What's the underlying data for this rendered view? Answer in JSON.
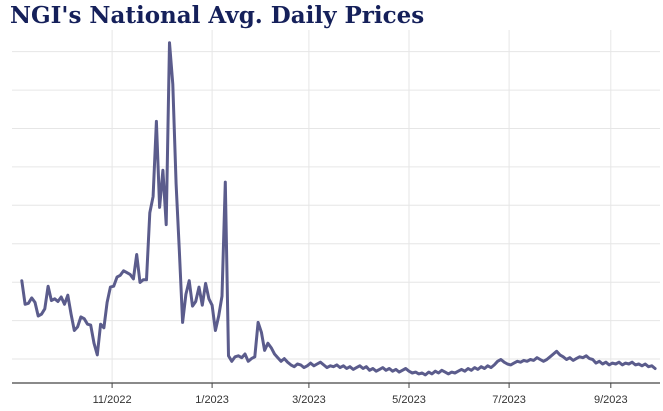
{
  "chart_data": {
    "type": "line",
    "title": "NGI's National Avg. Daily Prices",
    "xlabel": "",
    "ylabel": "",
    "x_tick_labels": [
      "11/2022",
      "1/2023",
      "3/2023",
      "5/2023",
      "7/2023",
      "9/2023"
    ],
    "x_tick_dates": [
      "2022-11-01",
      "2023-01-01",
      "2023-03-01",
      "2023-05-01",
      "2023-07-01",
      "2023-09-01"
    ],
    "xlim": [
      "2022-09-01",
      "2023-10-01"
    ],
    "ylim": [
      0,
      39
    ],
    "y_ticks_labeled": false,
    "grid": true,
    "line_color": "#5b5c8c",
    "series": [
      {
        "name": "",
        "points": [
          [
            "2022-09-07",
            11.3
          ],
          [
            "2022-09-09",
            8.7
          ],
          [
            "2022-09-11",
            8.8
          ],
          [
            "2022-09-13",
            9.4
          ],
          [
            "2022-09-15",
            8.9
          ],
          [
            "2022-09-17",
            7.4
          ],
          [
            "2022-09-19",
            7.6
          ],
          [
            "2022-09-21",
            8.2
          ],
          [
            "2022-09-23",
            10.7
          ],
          [
            "2022-09-25",
            9.1
          ],
          [
            "2022-09-27",
            9.3
          ],
          [
            "2022-09-29",
            9.0
          ],
          [
            "2022-10-01",
            9.5
          ],
          [
            "2022-10-03",
            8.7
          ],
          [
            "2022-10-05",
            9.7
          ],
          [
            "2022-10-07",
            7.6
          ],
          [
            "2022-10-09",
            5.8
          ],
          [
            "2022-10-11",
            6.2
          ],
          [
            "2022-10-13",
            7.3
          ],
          [
            "2022-10-15",
            7.1
          ],
          [
            "2022-10-17",
            6.5
          ],
          [
            "2022-10-19",
            6.4
          ],
          [
            "2022-10-21",
            4.4
          ],
          [
            "2022-10-23",
            3.1
          ],
          [
            "2022-10-25",
            6.5
          ],
          [
            "2022-10-27",
            6.1
          ],
          [
            "2022-10-29",
            8.9
          ],
          [
            "2022-10-31",
            10.6
          ],
          [
            "2022-11-02",
            10.7
          ],
          [
            "2022-11-04",
            11.7
          ],
          [
            "2022-11-06",
            11.9
          ],
          [
            "2022-11-08",
            12.4
          ],
          [
            "2022-11-10",
            12.2
          ],
          [
            "2022-11-12",
            12.0
          ],
          [
            "2022-11-14",
            11.5
          ],
          [
            "2022-11-16",
            14.2
          ],
          [
            "2022-11-18",
            11.1
          ],
          [
            "2022-11-20",
            11.4
          ],
          [
            "2022-11-22",
            11.4
          ],
          [
            "2022-11-24",
            18.8
          ],
          [
            "2022-11-26",
            20.6
          ],
          [
            "2022-11-28",
            28.9
          ],
          [
            "2022-11-30",
            19.4
          ],
          [
            "2022-12-02",
            23.5
          ],
          [
            "2022-12-04",
            17.5
          ],
          [
            "2022-12-06",
            37.6
          ],
          [
            "2022-12-08",
            33.0
          ],
          [
            "2022-12-10",
            22.0
          ],
          [
            "2022-12-12",
            14.7
          ],
          [
            "2022-12-14",
            6.7
          ],
          [
            "2022-12-16",
            9.8
          ],
          [
            "2022-12-18",
            11.3
          ],
          [
            "2022-12-20",
            8.5
          ],
          [
            "2022-12-22",
            9.0
          ],
          [
            "2022-12-24",
            10.6
          ],
          [
            "2022-12-26",
            8.6
          ],
          [
            "2022-12-28",
            11.0
          ],
          [
            "2022-12-30",
            9.3
          ],
          [
            "2023-01-01",
            8.6
          ],
          [
            "2023-01-03",
            5.8
          ],
          [
            "2023-01-05",
            7.4
          ],
          [
            "2023-01-07",
            9.6
          ],
          [
            "2023-01-09",
            22.2
          ],
          [
            "2023-01-11",
            3.0
          ],
          [
            "2023-01-13",
            2.4
          ],
          [
            "2023-01-15",
            2.9
          ],
          [
            "2023-01-17",
            3.0
          ],
          [
            "2023-01-19",
            2.8
          ],
          [
            "2023-01-21",
            3.2
          ],
          [
            "2023-01-23",
            2.4
          ],
          [
            "2023-01-25",
            2.7
          ],
          [
            "2023-01-27",
            2.9
          ],
          [
            "2023-01-29",
            6.7
          ],
          [
            "2023-01-31",
            5.6
          ],
          [
            "2023-02-02",
            3.6
          ],
          [
            "2023-02-04",
            4.4
          ],
          [
            "2023-02-06",
            3.9
          ],
          [
            "2023-02-08",
            3.2
          ],
          [
            "2023-02-10",
            2.8
          ],
          [
            "2023-02-12",
            2.4
          ],
          [
            "2023-02-14",
            2.7
          ],
          [
            "2023-02-16",
            2.3
          ],
          [
            "2023-02-18",
            2.0
          ],
          [
            "2023-02-20",
            1.8
          ],
          [
            "2023-02-22",
            2.1
          ],
          [
            "2023-02-24",
            2.0
          ],
          [
            "2023-02-26",
            1.7
          ],
          [
            "2023-02-28",
            1.9
          ],
          [
            "2023-03-02",
            2.2
          ],
          [
            "2023-03-04",
            1.9
          ],
          [
            "2023-03-06",
            2.1
          ],
          [
            "2023-03-08",
            2.3
          ],
          [
            "2023-03-10",
            2.0
          ],
          [
            "2023-03-12",
            1.7
          ],
          [
            "2023-03-14",
            1.9
          ],
          [
            "2023-03-16",
            1.8
          ],
          [
            "2023-03-18",
            2.0
          ],
          [
            "2023-03-20",
            1.7
          ],
          [
            "2023-03-22",
            1.9
          ],
          [
            "2023-03-24",
            1.6
          ],
          [
            "2023-03-26",
            1.8
          ],
          [
            "2023-03-28",
            1.5
          ],
          [
            "2023-03-30",
            1.7
          ],
          [
            "2023-04-01",
            1.9
          ],
          [
            "2023-04-03",
            1.6
          ],
          [
            "2023-04-05",
            1.8
          ],
          [
            "2023-04-07",
            1.4
          ],
          [
            "2023-04-09",
            1.6
          ],
          [
            "2023-04-11",
            1.3
          ],
          [
            "2023-04-13",
            1.5
          ],
          [
            "2023-04-15",
            1.7
          ],
          [
            "2023-04-17",
            1.4
          ],
          [
            "2023-04-19",
            1.6
          ],
          [
            "2023-04-21",
            1.3
          ],
          [
            "2023-04-23",
            1.5
          ],
          [
            "2023-04-25",
            1.2
          ],
          [
            "2023-04-27",
            1.4
          ],
          [
            "2023-04-29",
            1.6
          ],
          [
            "2023-05-01",
            1.3
          ],
          [
            "2023-05-03",
            1.1
          ],
          [
            "2023-05-05",
            1.2
          ],
          [
            "2023-05-07",
            1.0
          ],
          [
            "2023-05-09",
            1.1
          ],
          [
            "2023-05-11",
            0.9
          ],
          [
            "2023-05-13",
            1.2
          ],
          [
            "2023-05-15",
            1.0
          ],
          [
            "2023-05-17",
            1.3
          ],
          [
            "2023-05-19",
            1.1
          ],
          [
            "2023-05-21",
            1.4
          ],
          [
            "2023-05-23",
            1.2
          ],
          [
            "2023-05-25",
            1.0
          ],
          [
            "2023-05-27",
            1.2
          ],
          [
            "2023-05-29",
            1.1
          ],
          [
            "2023-05-31",
            1.3
          ],
          [
            "2023-06-02",
            1.5
          ],
          [
            "2023-06-04",
            1.3
          ],
          [
            "2023-06-06",
            1.6
          ],
          [
            "2023-06-08",
            1.4
          ],
          [
            "2023-06-10",
            1.7
          ],
          [
            "2023-06-12",
            1.5
          ],
          [
            "2023-06-14",
            1.8
          ],
          [
            "2023-06-16",
            1.6
          ],
          [
            "2023-06-18",
            1.9
          ],
          [
            "2023-06-20",
            1.7
          ],
          [
            "2023-06-22",
            2.0
          ],
          [
            "2023-06-24",
            2.4
          ],
          [
            "2023-06-26",
            2.6
          ],
          [
            "2023-06-28",
            2.3
          ],
          [
            "2023-06-30",
            2.1
          ],
          [
            "2023-07-02",
            2.0
          ],
          [
            "2023-07-04",
            2.2
          ],
          [
            "2023-07-06",
            2.4
          ],
          [
            "2023-07-08",
            2.3
          ],
          [
            "2023-07-10",
            2.5
          ],
          [
            "2023-07-12",
            2.4
          ],
          [
            "2023-07-14",
            2.6
          ],
          [
            "2023-07-16",
            2.5
          ],
          [
            "2023-07-18",
            2.8
          ],
          [
            "2023-07-20",
            2.6
          ],
          [
            "2023-07-22",
            2.4
          ],
          [
            "2023-07-24",
            2.6
          ],
          [
            "2023-07-26",
            2.9
          ],
          [
            "2023-07-28",
            3.2
          ],
          [
            "2023-07-30",
            3.5
          ],
          [
            "2023-08-01",
            3.1
          ],
          [
            "2023-08-03",
            2.9
          ],
          [
            "2023-08-05",
            2.6
          ],
          [
            "2023-08-07",
            2.8
          ],
          [
            "2023-08-09",
            2.5
          ],
          [
            "2023-08-11",
            2.7
          ],
          [
            "2023-08-13",
            2.9
          ],
          [
            "2023-08-15",
            2.8
          ],
          [
            "2023-08-17",
            3.0
          ],
          [
            "2023-08-19",
            2.7
          ],
          [
            "2023-08-21",
            2.6
          ],
          [
            "2023-08-23",
            2.2
          ],
          [
            "2023-08-25",
            2.4
          ],
          [
            "2023-08-27",
            2.1
          ],
          [
            "2023-08-29",
            2.3
          ],
          [
            "2023-08-31",
            2.0
          ],
          [
            "2023-09-02",
            2.2
          ],
          [
            "2023-09-04",
            2.1
          ],
          [
            "2023-09-06",
            2.3
          ],
          [
            "2023-09-08",
            2.0
          ],
          [
            "2023-09-10",
            2.2
          ],
          [
            "2023-09-12",
            2.1
          ],
          [
            "2023-09-14",
            2.3
          ],
          [
            "2023-09-16",
            2.0
          ],
          [
            "2023-09-18",
            2.1
          ],
          [
            "2023-09-20",
            1.9
          ],
          [
            "2023-09-22",
            2.1
          ],
          [
            "2023-09-24",
            1.8
          ],
          [
            "2023-09-26",
            1.9
          ],
          [
            "2023-09-28",
            1.6
          ]
        ]
      }
    ]
  }
}
